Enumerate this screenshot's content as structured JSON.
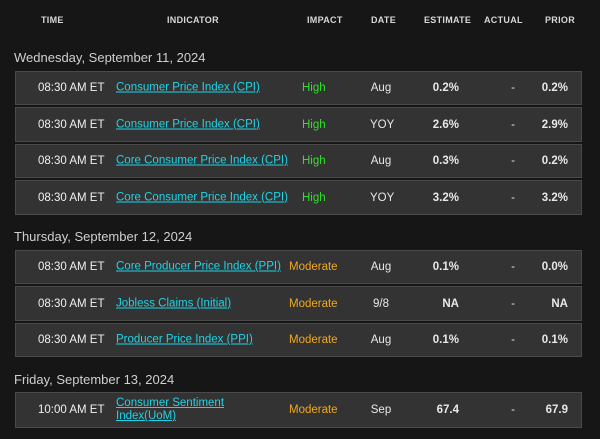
{
  "columns": {
    "time": "TIME",
    "indicator": "INDICATOR",
    "impact": "IMPACT",
    "date": "DATE",
    "estimate": "ESTIMATE",
    "actual": "ACTUAL",
    "prior": "PRIOR"
  },
  "colors": {
    "high": "#32e02c",
    "moderate": "#f0a81e",
    "link": "#22d3e6"
  },
  "days": [
    {
      "label": "Wednesday, September 11, 2024",
      "rows": [
        {
          "time": "08:30 AM ET",
          "indicator": "Consumer Price Index (CPI)",
          "impact": "High",
          "date": "Aug",
          "estimate": "0.2%",
          "actual": "-",
          "prior": "0.2%"
        },
        {
          "time": "08:30 AM ET",
          "indicator": "Consumer Price Index (CPI)",
          "impact": "High",
          "date": "YOY",
          "estimate": "2.6%",
          "actual": "-",
          "prior": "2.9%"
        },
        {
          "time": "08:30 AM ET",
          "indicator": "Core Consumer Price Index (CPI)",
          "impact": "High",
          "date": "Aug",
          "estimate": "0.3%",
          "actual": "-",
          "prior": "0.2%"
        },
        {
          "time": "08:30 AM ET",
          "indicator": "Core Consumer Price Index (CPI)",
          "impact": "High",
          "date": "YOY",
          "estimate": "3.2%",
          "actual": "-",
          "prior": "3.2%"
        }
      ]
    },
    {
      "label": "Thursday, September 12, 2024",
      "rows": [
        {
          "time": "08:30 AM ET",
          "indicator": "Core Producer Price Index (PPI)",
          "impact": "Moderate",
          "date": "Aug",
          "estimate": "0.1%",
          "actual": "-",
          "prior": "0.0%"
        },
        {
          "time": "08:30 AM ET",
          "indicator": "Jobless Claims (Initial)",
          "impact": "Moderate",
          "date": "9/8",
          "estimate": "NA",
          "actual": "-",
          "prior": "NA"
        },
        {
          "time": "08:30 AM ET",
          "indicator": "Producer Price Index (PPI)",
          "impact": "Moderate",
          "date": "Aug",
          "estimate": "0.1%",
          "actual": "-",
          "prior": "0.1%"
        }
      ]
    },
    {
      "label": "Friday, September 13, 2024",
      "rows": [
        {
          "time": "10:00 AM ET",
          "indicator": "Consumer Sentiment Index(UoM)",
          "impact": "Moderate",
          "date": "Sep",
          "estimate": "67.4",
          "actual": "-",
          "prior": "67.9"
        }
      ]
    }
  ]
}
